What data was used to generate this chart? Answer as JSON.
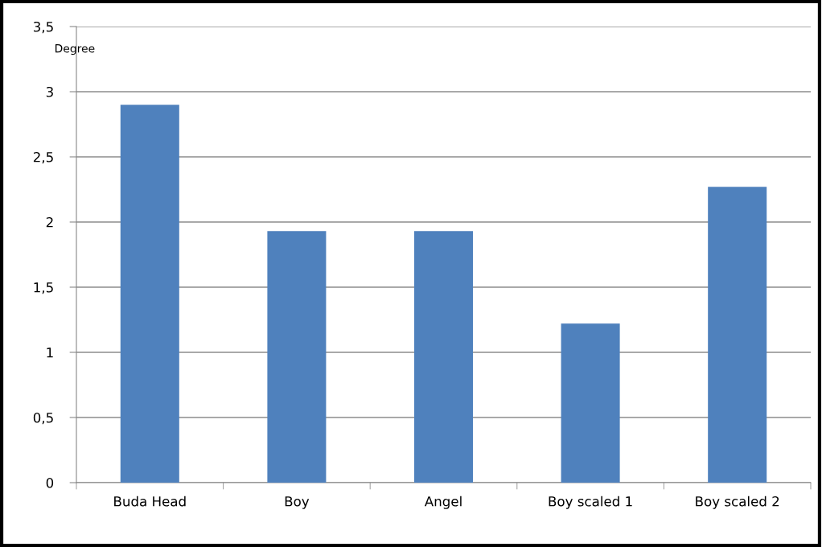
{
  "chart_data": {
    "type": "bar",
    "ylabel": "Degree",
    "categories": [
      "Buda Head",
      "Boy",
      "Angel",
      "Boy scaled 1",
      "Boy scaled 2"
    ],
    "values": [
      2.9,
      1.93,
      1.93,
      1.22,
      2.27
    ],
    "color": "#4f81bd",
    "ylim": [
      0,
      3.5
    ],
    "yticks": [
      0,
      {
        "value": 0.5,
        "label": "0,5"
      },
      1,
      {
        "value": 1.5,
        "label": "1,5"
      },
      2,
      {
        "value": 2.5,
        "label": "2,5"
      },
      3,
      {
        "value": 3.5,
        "label": "3,5"
      }
    ],
    "grid": "y",
    "legend": false
  }
}
